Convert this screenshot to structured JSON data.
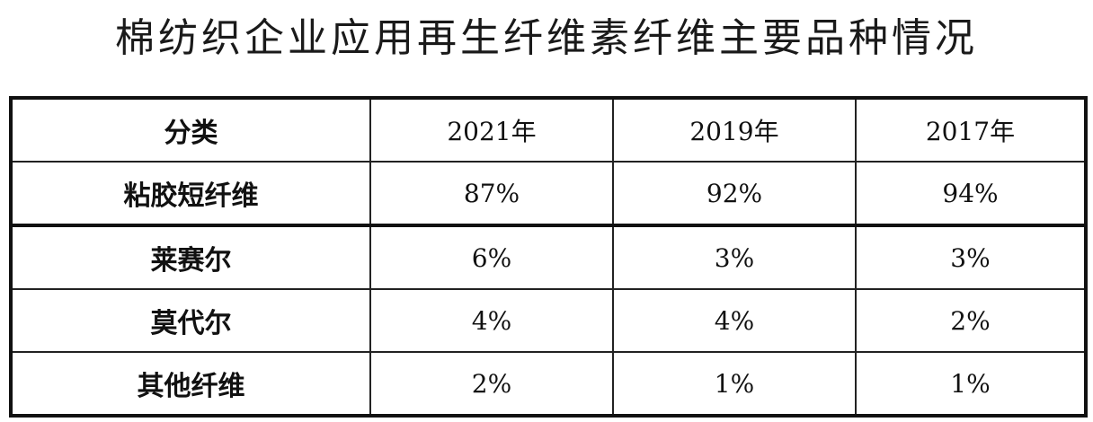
{
  "chart_data": {
    "type": "table",
    "title": "棉纺织企业应用再生纤维素纤维主要品种情况",
    "columns": [
      "分类",
      "2021年",
      "2019年",
      "2017年"
    ],
    "rows": [
      [
        "粘胶短纤维",
        "87%",
        "92%",
        "94%"
      ],
      [
        "莱赛尔",
        "6%",
        "3%",
        "3%"
      ],
      [
        "莫代尔",
        "4%",
        "4%",
        "2%"
      ],
      [
        "其他纤维",
        "2%",
        "1%",
        "1%"
      ]
    ]
  }
}
